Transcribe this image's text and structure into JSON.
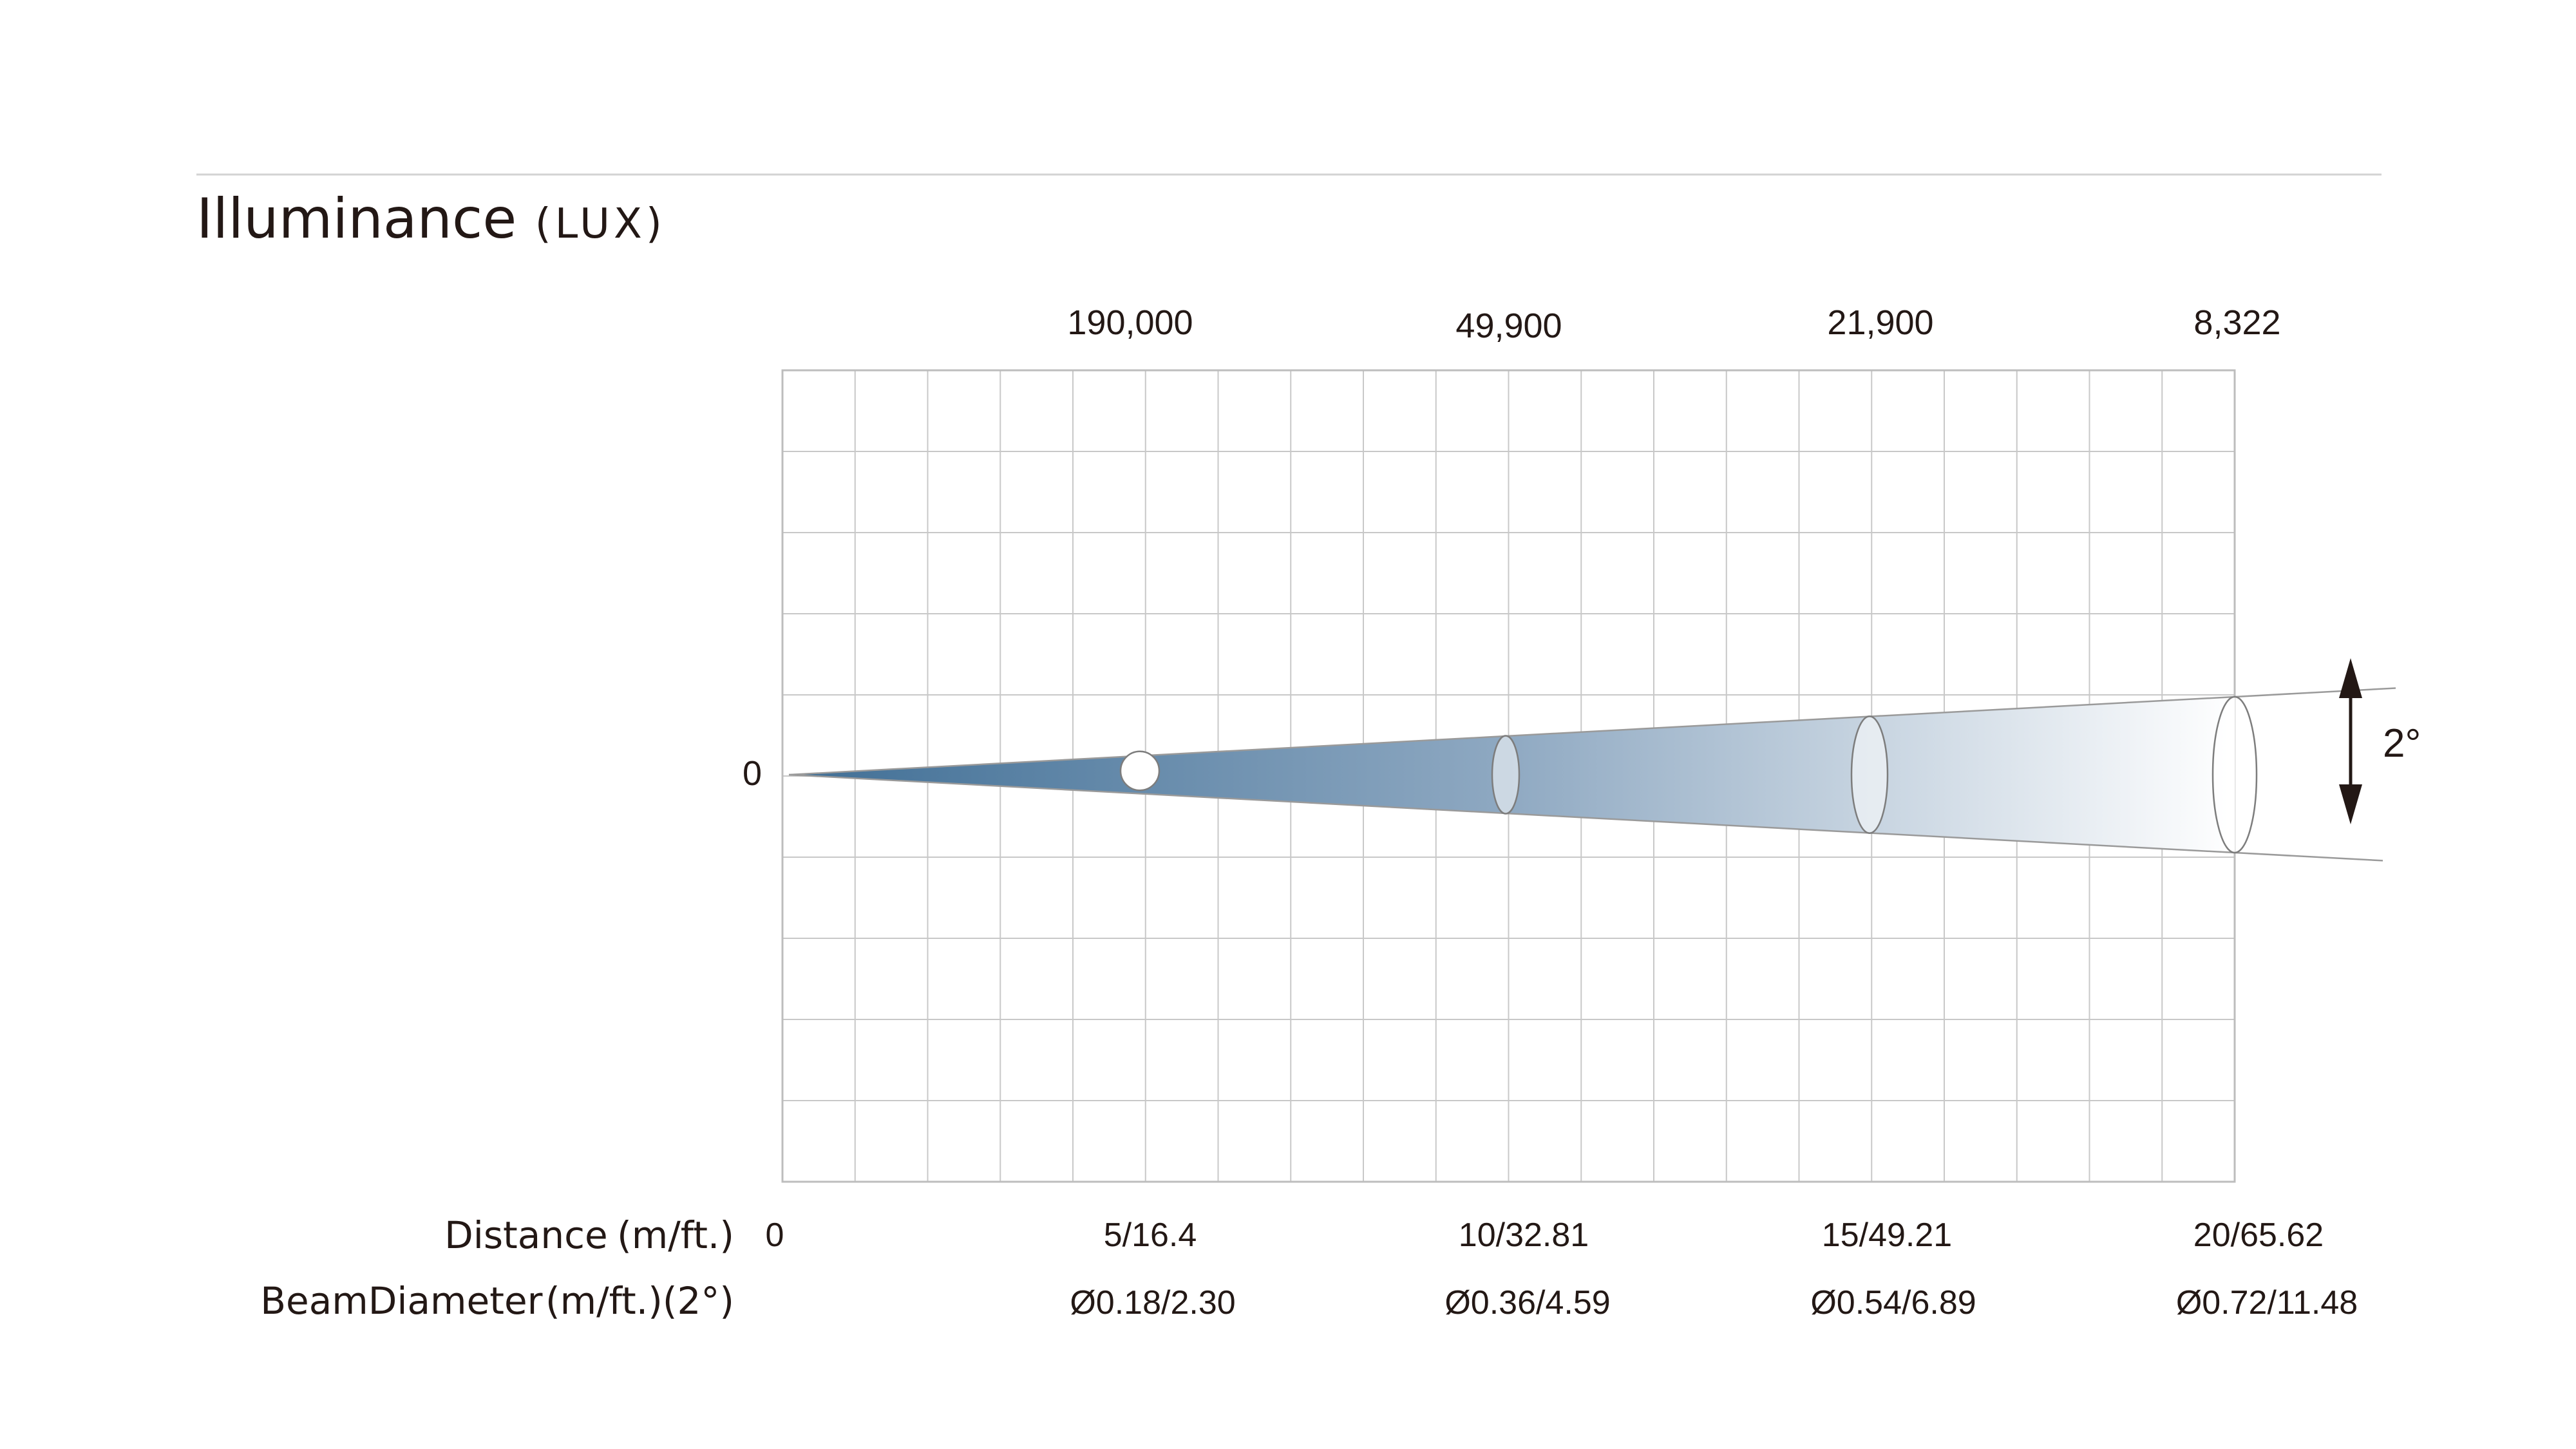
{
  "title": {
    "main": "Illuminance",
    "unit": "(LUX)"
  },
  "origin_label": "0",
  "beam_angle_label": "2°",
  "row_labels": {
    "distance_main": "Distance",
    "distance_unit": "(m/ft.)",
    "diameter_main": "BeamDiameter",
    "diameter_unit": "(m/ft.)(2°)"
  },
  "distance_start_label": "0",
  "stations": [
    {
      "lux": "190,000",
      "distance": "5/16.4",
      "diameter": "Ø0.18/2.30",
      "distance_m": 5,
      "diameter_m": 0.18
    },
    {
      "lux": "49,900",
      "distance": "10/32.81",
      "diameter": "Ø0.36/4.59",
      "distance_m": 10,
      "diameter_m": 0.36
    },
    {
      "lux": "21,900",
      "distance": "15/49.21",
      "diameter": "Ø0.54/6.89",
      "distance_m": 15,
      "diameter_m": 0.54
    },
    {
      "lux": "8,322",
      "distance": "20/65.62",
      "diameter": "Ø0.72/11.48",
      "distance_m": 20,
      "diameter_m": 0.72
    }
  ],
  "colors": {
    "beam_start": "#3f6e95",
    "beam_end": "#ffffff",
    "grid": "#c8c8c8",
    "frame": "#bdbdbd",
    "rule": "#d3d3d3",
    "text": "#231815"
  }
}
